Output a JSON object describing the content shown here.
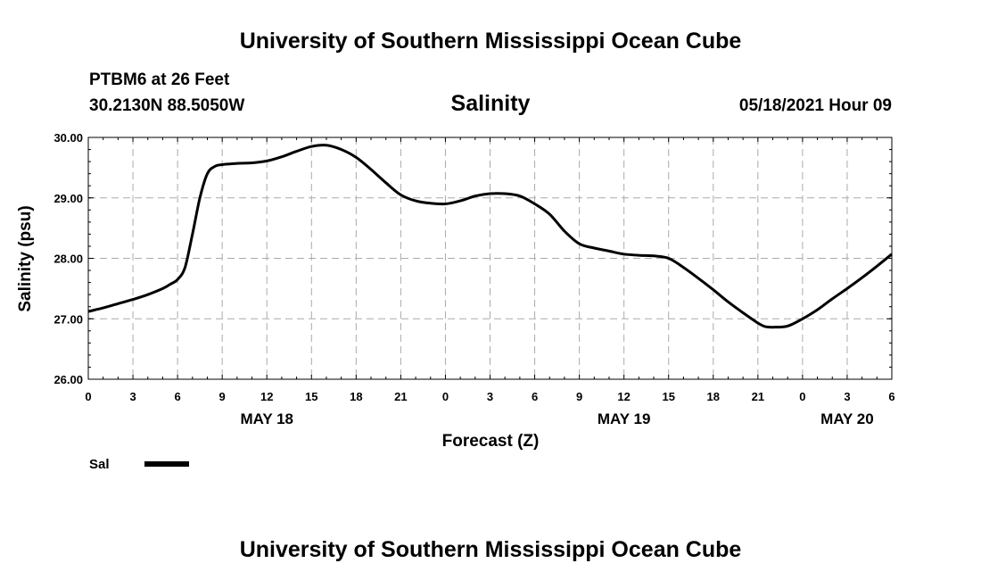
{
  "page": {
    "title_top": "University of Southern Mississippi Ocean Cube",
    "title_bottom": "University of Southern Mississippi Ocean Cube",
    "station": "PTBM6 at 26 Feet",
    "location": "30.2130N  88.5050W",
    "product": "Salinity",
    "run_time": "05/18/2021 Hour 09"
  },
  "chart_data": {
    "type": "line",
    "title": "Salinity",
    "xlabel": "Forecast (Z)",
    "ylabel": "Salinity (psu)",
    "ylim": [
      26,
      30
    ],
    "xlim": [
      0,
      54
    ],
    "y_ticks": [
      "26.00",
      "27.00",
      "28.00",
      "29.00",
      "30.00"
    ],
    "x_tick_labels": [
      "0",
      "3",
      "6",
      "9",
      "12",
      "15",
      "18",
      "21",
      "0",
      "3",
      "6",
      "9",
      "12",
      "15",
      "18",
      "21",
      "0",
      "3",
      "6"
    ],
    "day_labels": [
      {
        "label": "MAY 18",
        "hour": 12
      },
      {
        "label": "MAY 19",
        "hour": 36
      },
      {
        "label": "MAY 20",
        "hour": 51
      }
    ],
    "grid": true,
    "legend": {
      "placement": "bottom-left",
      "entries": [
        "Sal"
      ]
    },
    "series": [
      {
        "name": "Sal",
        "color": "#000000",
        "x": [
          0,
          1,
          2,
          3,
          4,
          5,
          5.5,
          6,
          6.5,
          7,
          7.5,
          8,
          8.5,
          9,
          10,
          11,
          12,
          13,
          14,
          15,
          16,
          17,
          18,
          19,
          20,
          21,
          22,
          23,
          24,
          25,
          26,
          27,
          28,
          29,
          30,
          31,
          32,
          33,
          34,
          35,
          36,
          37,
          38,
          39,
          40,
          41,
          42,
          43,
          44,
          45,
          45.5,
          46,
          47,
          48,
          49,
          50,
          51,
          52,
          53,
          54
        ],
        "values": [
          27.12,
          27.18,
          27.25,
          27.32,
          27.4,
          27.5,
          27.57,
          27.65,
          27.85,
          28.4,
          29.0,
          29.4,
          29.52,
          29.55,
          29.57,
          29.58,
          29.61,
          29.68,
          29.77,
          29.85,
          29.87,
          29.8,
          29.67,
          29.47,
          29.25,
          29.05,
          28.95,
          28.91,
          28.9,
          28.95,
          29.03,
          29.07,
          29.07,
          29.03,
          28.9,
          28.73,
          28.45,
          28.24,
          28.17,
          28.12,
          28.07,
          28.05,
          28.04,
          28.0,
          27.85,
          27.67,
          27.48,
          27.28,
          27.1,
          26.93,
          26.87,
          26.86,
          26.88,
          27.0,
          27.15,
          27.33,
          27.5,
          27.68,
          27.87,
          28.07
        ]
      }
    ]
  }
}
